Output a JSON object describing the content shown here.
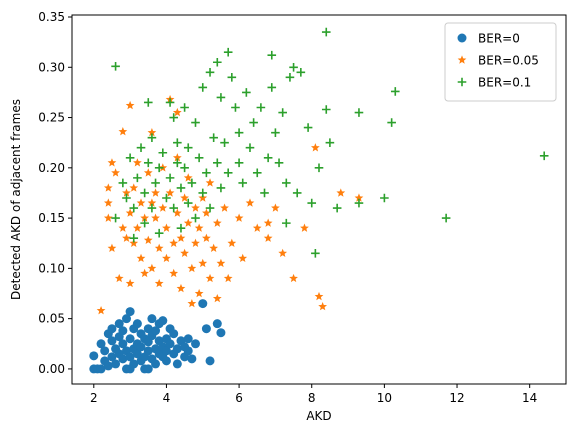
{
  "chart_data": {
    "type": "scatter",
    "xlabel": "AKD",
    "ylabel": "Detected AKD of adjacent frames",
    "xlim": [
      1.4,
      15.0
    ],
    "ylim": [
      -0.015,
      0.352
    ],
    "xticks": [
      2,
      4,
      6,
      8,
      10,
      12,
      14
    ],
    "yticks": [
      0.0,
      0.05,
      0.1,
      0.15,
      0.2,
      0.25,
      0.3,
      0.35
    ],
    "xtick_labels": [
      "2",
      "4",
      "6",
      "8",
      "10",
      "12",
      "14"
    ],
    "ytick_labels": [
      "0.00",
      "0.05",
      "0.10",
      "0.15",
      "0.20",
      "0.25",
      "0.30",
      "0.35"
    ],
    "legend_position": "top-right",
    "series": [
      {
        "name": "BER=0",
        "marker": "circle",
        "color": "#1f77b4",
        "points": [
          [
            2.0,
            0.013
          ],
          [
            2.0,
            0.0
          ],
          [
            2.1,
            0.0
          ],
          [
            2.2,
            0.0
          ],
          [
            2.2,
            0.025
          ],
          [
            2.3,
            0.008
          ],
          [
            2.3,
            0.018
          ],
          [
            2.4,
            0.035
          ],
          [
            2.4,
            0.003
          ],
          [
            2.5,
            0.012
          ],
          [
            2.5,
            0.028
          ],
          [
            2.6,
            0.02
          ],
          [
            2.6,
            0.005
          ],
          [
            2.7,
            0.032
          ],
          [
            2.7,
            0.015
          ],
          [
            2.7,
            0.045
          ],
          [
            2.8,
            0.01
          ],
          [
            2.8,
            0.025
          ],
          [
            2.8,
            0.038
          ],
          [
            2.9,
            0.0
          ],
          [
            2.9,
            0.018
          ],
          [
            2.9,
            0.05
          ],
          [
            3.0,
            0.012
          ],
          [
            3.0,
            0.03
          ],
          [
            3.0,
            0.057
          ],
          [
            3.1,
            0.02
          ],
          [
            3.1,
            0.04
          ],
          [
            3.1,
            0.005
          ],
          [
            3.2,
            0.025
          ],
          [
            3.2,
            0.015
          ],
          [
            3.2,
            0.045
          ],
          [
            3.3,
            0.008
          ],
          [
            3.3,
            0.035
          ],
          [
            3.3,
            0.022
          ],
          [
            3.4,
            0.0
          ],
          [
            3.4,
            0.03
          ],
          [
            3.4,
            0.012
          ],
          [
            3.5,
            0.018
          ],
          [
            3.5,
            0.04
          ],
          [
            3.5,
            0.027
          ],
          [
            3.6,
            0.01
          ],
          [
            3.6,
            0.033
          ],
          [
            3.6,
            0.05
          ],
          [
            3.7,
            0.02
          ],
          [
            3.7,
            0.005
          ],
          [
            3.7,
            0.038
          ],
          [
            3.8,
            0.015
          ],
          [
            3.8,
            0.028
          ],
          [
            3.8,
            0.045
          ],
          [
            3.9,
            0.012
          ],
          [
            3.9,
            0.022
          ],
          [
            4.0,
            0.03
          ],
          [
            4.0,
            0.008
          ],
          [
            4.0,
            0.018
          ],
          [
            4.1,
            0.025
          ],
          [
            4.1,
            0.04
          ],
          [
            4.2,
            0.015
          ],
          [
            4.2,
            0.035
          ],
          [
            4.3,
            0.02
          ],
          [
            4.3,
            0.005
          ],
          [
            4.4,
            0.028
          ],
          [
            4.5,
            0.012
          ],
          [
            4.5,
            0.022
          ],
          [
            4.6,
            0.018
          ],
          [
            4.7,
            0.01
          ],
          [
            4.8,
            0.025
          ],
          [
            5.0,
            0.065
          ],
          [
            5.1,
            0.04
          ],
          [
            5.2,
            0.008
          ],
          [
            5.4,
            0.045
          ],
          [
            5.5,
            0.036
          ],
          [
            3.9,
            0.048
          ],
          [
            4.6,
            0.03
          ],
          [
            2.5,
            0.04
          ],
          [
            3.5,
            0.0
          ],
          [
            3.0,
            0.0
          ]
        ]
      },
      {
        "name": "BER=0.05",
        "marker": "star",
        "color": "#ff7f0e",
        "points": [
          [
            2.2,
            0.058
          ],
          [
            2.4,
            0.18
          ],
          [
            2.4,
            0.165
          ],
          [
            2.4,
            0.15
          ],
          [
            2.5,
            0.12
          ],
          [
            2.5,
            0.205
          ],
          [
            2.6,
            0.195
          ],
          [
            2.7,
            0.09
          ],
          [
            2.8,
            0.236
          ],
          [
            2.8,
            0.14
          ],
          [
            2.9,
            0.175
          ],
          [
            3.0,
            0.262
          ],
          [
            3.0,
            0.155
          ],
          [
            3.0,
            0.085
          ],
          [
            3.1,
            0.125
          ],
          [
            3.1,
            0.18
          ],
          [
            3.2,
            0.205
          ],
          [
            3.2,
            0.14
          ],
          [
            3.3,
            0.11
          ],
          [
            3.3,
            0.165
          ],
          [
            3.4,
            0.095
          ],
          [
            3.4,
            0.15
          ],
          [
            3.5,
            0.195
          ],
          [
            3.5,
            0.128
          ],
          [
            3.6,
            0.235
          ],
          [
            3.6,
            0.1
          ],
          [
            3.7,
            0.175
          ],
          [
            3.7,
            0.15
          ],
          [
            3.8,
            0.12
          ],
          [
            3.8,
            0.085
          ],
          [
            3.9,
            0.16
          ],
          [
            3.9,
            0.2
          ],
          [
            4.0,
            0.14
          ],
          [
            4.0,
            0.11
          ],
          [
            4.1,
            0.268
          ],
          [
            4.1,
            0.175
          ],
          [
            4.2,
            0.125
          ],
          [
            4.2,
            0.095
          ],
          [
            4.3,
            0.155
          ],
          [
            4.3,
            0.21
          ],
          [
            4.4,
            0.13
          ],
          [
            4.4,
            0.08
          ],
          [
            4.5,
            0.17
          ],
          [
            4.5,
            0.115
          ],
          [
            4.6,
            0.145
          ],
          [
            4.6,
            0.19
          ],
          [
            4.7,
            0.1
          ],
          [
            4.7,
            0.065
          ],
          [
            4.8,
            0.16
          ],
          [
            4.8,
            0.125
          ],
          [
            4.9,
            0.14
          ],
          [
            4.9,
            0.075
          ],
          [
            5.0,
            0.17
          ],
          [
            5.0,
            0.105
          ],
          [
            5.1,
            0.13
          ],
          [
            5.1,
            0.155
          ],
          [
            5.2,
            0.09
          ],
          [
            5.2,
            0.185
          ],
          [
            5.3,
            0.12
          ],
          [
            5.4,
            0.145
          ],
          [
            5.5,
            0.105
          ],
          [
            5.6,
            0.16
          ],
          [
            5.7,
            0.09
          ],
          [
            5.8,
            0.125
          ],
          [
            6.0,
            0.15
          ],
          [
            6.1,
            0.11
          ],
          [
            6.3,
            0.165
          ],
          [
            6.5,
            0.14
          ],
          [
            6.8,
            0.13
          ],
          [
            7.0,
            0.16
          ],
          [
            7.2,
            0.115
          ],
          [
            7.5,
            0.09
          ],
          [
            7.8,
            0.14
          ],
          [
            8.1,
            0.22
          ],
          [
            8.2,
            0.072
          ],
          [
            8.3,
            0.062
          ],
          [
            8.8,
            0.175
          ],
          [
            9.3,
            0.17
          ],
          [
            2.9,
            0.13
          ],
          [
            3.6,
            0.165
          ],
          [
            4.3,
            0.255
          ],
          [
            5.4,
            0.07
          ],
          [
            6.8,
            0.145
          ]
        ]
      },
      {
        "name": "BER=0.1",
        "marker": "plus",
        "color": "#2ca02c",
        "points": [
          [
            2.6,
            0.301
          ],
          [
            2.6,
            0.15
          ],
          [
            2.8,
            0.185
          ],
          [
            2.9,
            0.17
          ],
          [
            3.0,
            0.21
          ],
          [
            3.1,
            0.16
          ],
          [
            3.1,
            0.13
          ],
          [
            3.2,
            0.19
          ],
          [
            3.3,
            0.22
          ],
          [
            3.4,
            0.175
          ],
          [
            3.4,
            0.145
          ],
          [
            3.5,
            0.265
          ],
          [
            3.5,
            0.205
          ],
          [
            3.6,
            0.23
          ],
          [
            3.6,
            0.16
          ],
          [
            3.7,
            0.185
          ],
          [
            3.8,
            0.2
          ],
          [
            3.8,
            0.135
          ],
          [
            3.9,
            0.215
          ],
          [
            4.0,
            0.17
          ],
          [
            4.1,
            0.265
          ],
          [
            4.1,
            0.19
          ],
          [
            4.2,
            0.25
          ],
          [
            4.2,
            0.16
          ],
          [
            4.3,
            0.225
          ],
          [
            4.3,
            0.205
          ],
          [
            4.4,
            0.18
          ],
          [
            4.4,
            0.14
          ],
          [
            4.5,
            0.26
          ],
          [
            4.5,
            0.2
          ],
          [
            4.6,
            0.22
          ],
          [
            4.6,
            0.165
          ],
          [
            4.7,
            0.185
          ],
          [
            4.8,
            0.245
          ],
          [
            4.8,
            0.15
          ],
          [
            4.9,
            0.21
          ],
          [
            5.0,
            0.28
          ],
          [
            5.0,
            0.175
          ],
          [
            5.1,
            0.195
          ],
          [
            5.2,
            0.295
          ],
          [
            5.2,
            0.16
          ],
          [
            5.3,
            0.23
          ],
          [
            5.4,
            0.305
          ],
          [
            5.4,
            0.205
          ],
          [
            5.5,
            0.27
          ],
          [
            5.5,
            0.18
          ],
          [
            5.6,
            0.225
          ],
          [
            5.7,
            0.315
          ],
          [
            5.7,
            0.195
          ],
          [
            5.8,
            0.29
          ],
          [
            5.9,
            0.26
          ],
          [
            6.0,
            0.235
          ],
          [
            6.0,
            0.205
          ],
          [
            6.1,
            0.185
          ],
          [
            6.2,
            0.275
          ],
          [
            6.3,
            0.22
          ],
          [
            6.4,
            0.245
          ],
          [
            6.5,
            0.195
          ],
          [
            6.6,
            0.26
          ],
          [
            6.7,
            0.175
          ],
          [
            6.8,
            0.21
          ],
          [
            6.9,
            0.312
          ],
          [
            6.9,
            0.28
          ],
          [
            7.0,
            0.235
          ],
          [
            7.1,
            0.205
          ],
          [
            7.2,
            0.255
          ],
          [
            7.3,
            0.185
          ],
          [
            7.3,
            0.145
          ],
          [
            7.4,
            0.29
          ],
          [
            7.5,
            0.3
          ],
          [
            7.6,
            0.175
          ],
          [
            7.7,
            0.295
          ],
          [
            7.9,
            0.24
          ],
          [
            8.0,
            0.165
          ],
          [
            8.1,
            0.115
          ],
          [
            8.2,
            0.2
          ],
          [
            8.4,
            0.335
          ],
          [
            8.4,
            0.258
          ],
          [
            8.5,
            0.225
          ],
          [
            8.7,
            0.16
          ],
          [
            9.3,
            0.255
          ],
          [
            9.3,
            0.165
          ],
          [
            10.0,
            0.17
          ],
          [
            10.2,
            0.245
          ],
          [
            10.3,
            0.276
          ],
          [
            11.7,
            0.15
          ],
          [
            14.4,
            0.212
          ]
        ]
      }
    ]
  }
}
